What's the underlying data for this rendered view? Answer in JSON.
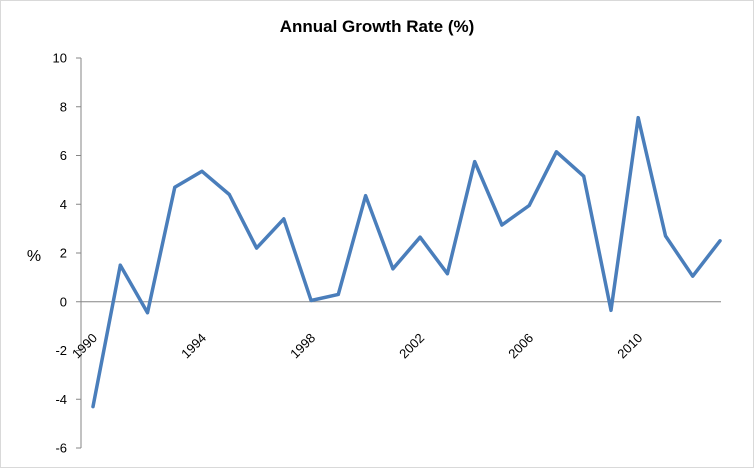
{
  "chart_data": {
    "type": "line",
    "title": "Annual Growth Rate (%)",
    "xlabel": "",
    "ylabel": "%",
    "ylim": [
      -6,
      10
    ],
    "yticks": [
      10,
      8,
      6,
      4,
      2,
      0,
      -2,
      -4,
      -6
    ],
    "xtick_labels": [
      "1990",
      "1994",
      "1998",
      "2002",
      "2006",
      "2010"
    ],
    "x": [
      1990,
      1991,
      1992,
      1993,
      1994,
      1995,
      1996,
      1997,
      1998,
      1999,
      2000,
      2001,
      2002,
      2003,
      2004,
      2005,
      2006,
      2007,
      2008,
      2009,
      2010,
      2011,
      2012,
      2013
    ],
    "series": [
      {
        "values": [
          -4.3,
          1.5,
          -0.45,
          4.7,
          5.35,
          4.4,
          2.2,
          3.4,
          0.05,
          0.3,
          4.35,
          1.35,
          2.65,
          1.15,
          5.75,
          3.15,
          3.95,
          6.15,
          5.15,
          -0.35,
          7.55,
          2.7,
          1.05,
          2.5
        ],
        "color": "#4a7ebb"
      }
    ],
    "grid": false,
    "legend": "none"
  }
}
